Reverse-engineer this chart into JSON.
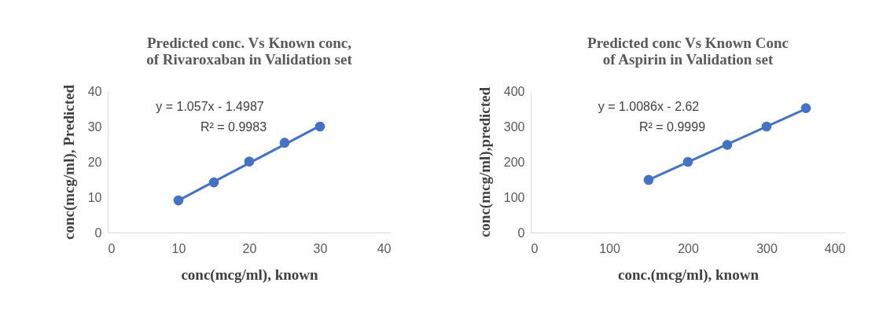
{
  "chart_data": [
    {
      "type": "scatter",
      "title": "Predicted conc. Vs Known conc, of Rivaroxaban in Validation set",
      "xlabel": "conc(mcg/ml), known",
      "ylabel": "conc(mcg/ml), Predicted",
      "x": [
        10,
        15,
        20,
        25,
        30
      ],
      "grid": false,
      "series": [
        {
          "color": "#4472c4",
          "marker": "circle",
          "values": [
            9.1,
            14.2,
            20.1,
            25.4,
            30
          ]
        },
        {
          "type": "line",
          "color": "#4472c4",
          "x": [
            10,
            30
          ],
          "values": [
            9.1,
            30.2
          ],
          "line_style": "solid"
        }
      ],
      "xlim": [
        0,
        40
      ],
      "xticks": [
        0,
        10,
        20,
        30,
        40
      ],
      "ylim": [
        0,
        40
      ],
      "yticks": [
        0,
        10,
        20,
        30,
        40
      ],
      "annotations": [
        "y = 1.057x - 1.4987",
        "R² = 0.9983"
      ]
    },
    {
      "type": "scatter",
      "title": "Predicted conc Vs Known Conc of Aspirin in Validation set",
      "xlabel": "conc.(mcg/ml), known",
      "ylabel": "conc(mcg/ml),predicted",
      "x": [
        150,
        200,
        250,
        300,
        350
      ],
      "grid": false,
      "series": [
        {
          "color": "#4472c4",
          "marker": "circle",
          "values": [
            149,
            200,
            248,
            300,
            352
          ]
        },
        {
          "type": "line",
          "color": "#4472c4",
          "x": [
            150,
            350
          ],
          "values": [
            149,
            350
          ],
          "line_style": "solid"
        }
      ],
      "xlim": [
        0,
        400
      ],
      "xticks": [
        0,
        100,
        200,
        300,
        400
      ],
      "ylim": [
        0,
        400
      ],
      "yticks": [
        0,
        100,
        200,
        300,
        400
      ],
      "annotations": [
        "y = 1.0086x - 2.62",
        "R² = 0.9999"
      ]
    }
  ]
}
